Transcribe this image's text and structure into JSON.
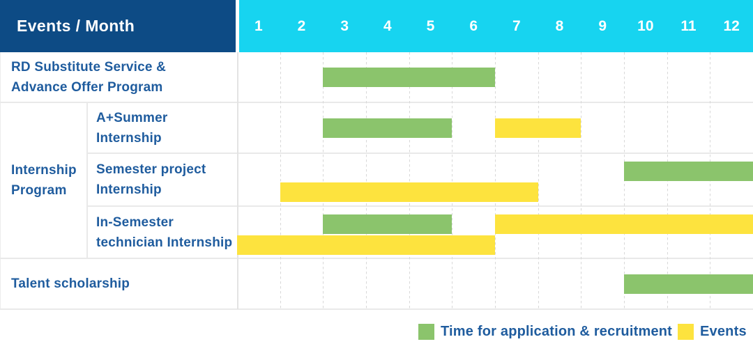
{
  "header": {
    "title": "Events / Month"
  },
  "colors": {
    "navy": "#0d4b85",
    "cyan": "#17d4f0",
    "bar_green": "#8bc46c",
    "bar_yellow": "#fde33e",
    "label_blue": "#1f5c9e",
    "grid_line": "#e9e9e9"
  },
  "legend": {
    "items": [
      {
        "label": "Time for application & recruitment",
        "color_key": "bar_green"
      },
      {
        "label": "Events",
        "color_key": "bar_yellow"
      }
    ]
  },
  "chart_data": {
    "type": "bar",
    "subtype": "gantt-monthly-schedule",
    "title": "Events / Month",
    "months": [
      "1",
      "2",
      "3",
      "4",
      "5",
      "6",
      "7",
      "8",
      "9",
      "10",
      "11",
      "12"
    ],
    "x_range": [
      1,
      12
    ],
    "series_legend": [
      "Time for application & recruitment",
      "Events"
    ],
    "groups": [
      {
        "label": "Internship Program",
        "label_display": "Internship\nProgram",
        "rows": [
          "A+Summer Internship",
          "Semester project Internship",
          "In-Semester technician Internship"
        ]
      }
    ],
    "rows": [
      {
        "label": "RD Substitute Service & Advance Offer Program",
        "label_display": "RD Substitute Service &\nAdvance Offer Program",
        "group": "",
        "bars": [
          {
            "series": "Time for application & recruitment",
            "color": "green",
            "start_month": 3,
            "end_month": 6,
            "lane": "center"
          }
        ]
      },
      {
        "label": "A+Summer Internship",
        "label_display": "A+Summer\nInternship",
        "group": "Internship Program",
        "bars": [
          {
            "series": "Time for application & recruitment",
            "color": "green",
            "start_month": 3,
            "end_month": 5,
            "lane": "center"
          },
          {
            "series": "Events",
            "color": "yellow",
            "start_month": 7,
            "end_month": 8,
            "lane": "center"
          }
        ]
      },
      {
        "label": "Semester project Internship",
        "label_display": "Semester project\nInternship",
        "group": "Internship Program",
        "bars": [
          {
            "series": "Time for application & recruitment",
            "color": "green",
            "start_month": 10,
            "end_month": 12,
            "lane": "top"
          },
          {
            "series": "Events",
            "color": "yellow",
            "start_month": 2,
            "end_month": 7,
            "lane": "bottom"
          }
        ]
      },
      {
        "label": "In-Semester technician Internship",
        "label_display": "In-Semester\ntechnician Internship",
        "group": "Internship Program",
        "bars": [
          {
            "series": "Time for application & recruitment",
            "color": "green",
            "start_month": 3,
            "end_month": 5,
            "lane": "top"
          },
          {
            "series": "Events",
            "color": "yellow",
            "start_month": 7,
            "end_month": 12,
            "lane": "top"
          },
          {
            "series": "Events",
            "color": "yellow",
            "start_month": 1,
            "end_month": 6,
            "lane": "bottom"
          }
        ]
      },
      {
        "label": "Talent scholarship",
        "label_display": "Talent scholarship",
        "group": "",
        "bars": [
          {
            "series": "Time for application & recruitment",
            "color": "green",
            "start_month": 10,
            "end_month": 12,
            "lane": "center"
          }
        ]
      }
    ]
  }
}
